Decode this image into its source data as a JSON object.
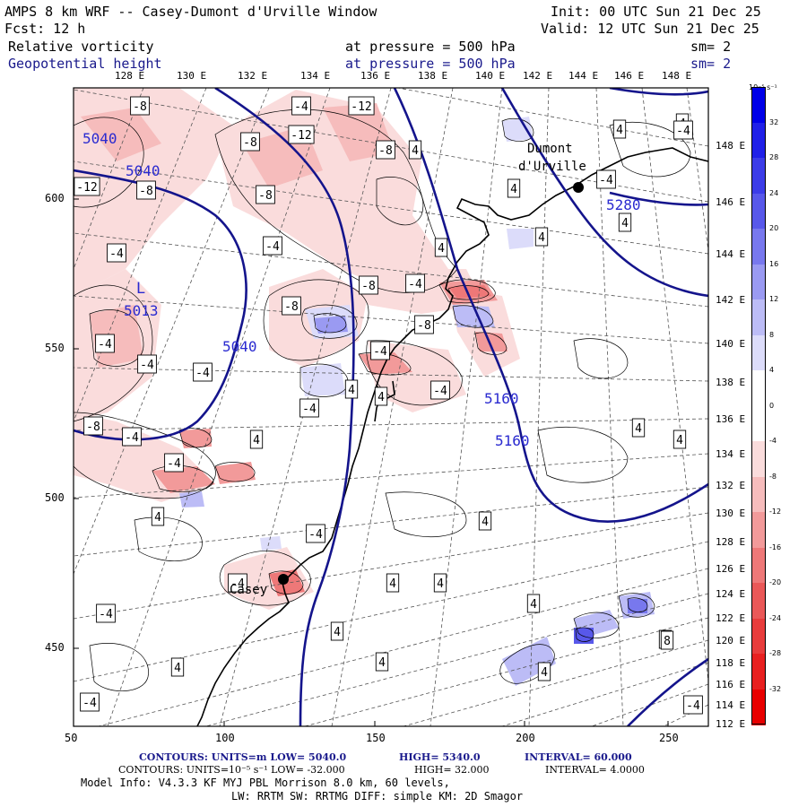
{
  "header": {
    "title": "AMPS 8 km WRF -- Casey-Dumont d'Urville Window",
    "init": "Init: 00 UTC Sun 21 Dec 25",
    "fcst": "Fcst:   12 h",
    "valid": "Valid: 12 UTC Sun 21 Dec 25",
    "field1": "Relative vorticity",
    "field1_level": "at pressure =  500 hPa",
    "field1_sm": "sm= 2",
    "field2": "Geopotential height",
    "field2_level": "at pressure =  500 hPa",
    "field2_sm": "sm= 2"
  },
  "top_lon_labels": [
    "128 E",
    "130 E",
    "132 E",
    "134 E",
    "136 E",
    "138 E",
    "140 E",
    "142 E",
    "144 E",
    "146 E",
    "148 E"
  ],
  "right_lon_labels": [
    "148 E",
    "146 E",
    "144 E",
    "142 E",
    "140 E",
    "138 E",
    "136 E",
    "134 E",
    "132 E",
    "130 E",
    "128 E",
    "126 E",
    "124 E",
    "122 E",
    "120 E",
    "118 E",
    "116 E",
    "114 E",
    "112 E"
  ],
  "x_ticks": [
    "50",
    "100",
    "150",
    "200",
    "250"
  ],
  "y_ticks": [
    "600",
    "550",
    "500",
    "450"
  ],
  "colorbar": {
    "unit": "10⁻⁵ s⁻¹",
    "labels": [
      "32",
      "28",
      "24",
      "20",
      "16",
      "12",
      "8",
      "4",
      "0",
      "-4",
      "-8",
      "-12",
      "-16",
      "-20",
      "-24",
      "-28",
      "-32"
    ],
    "colors": [
      "#0000e8",
      "#2020e8",
      "#3c3ce8",
      "#5858ea",
      "#7878ee",
      "#9a9af2",
      "#bcbcf6",
      "#dcdcfa",
      "#ffffff",
      "#ffffff",
      "#fadcdc",
      "#f6bcbc",
      "#f29a9a",
      "#ee7878",
      "#ea5858",
      "#e83c3c",
      "#e82020",
      "#e80000"
    ]
  },
  "places": {
    "dumont_line1": "Dumont",
    "dumont_line2": "d'Urville",
    "casey": "Casey",
    "low_marker": "L"
  },
  "height_labels": [
    "5040",
    "5040",
    "5013",
    "5040",
    "5160",
    "5160",
    "5280"
  ],
  "vorticity_labels": [
    "-8",
    "-4",
    "-12",
    "-8",
    "-12",
    "-8",
    "-12",
    "-8",
    "-8",
    "-4",
    "-4",
    "-8",
    "-4",
    "-8",
    "-8",
    "-4",
    "-4",
    "-4",
    "-4",
    "-8",
    "-4",
    "-4",
    "-4",
    "-4",
    "-4",
    "-4",
    "-4",
    "-4",
    "-4",
    "4",
    "4",
    "4",
    "4",
    "4",
    "4",
    "4",
    "4",
    "4",
    "4",
    "4",
    "4",
    "4",
    "4",
    "4",
    "4",
    "4",
    "4",
    "4",
    "4",
    "4",
    "4",
    "-4",
    "-4",
    "8"
  ],
  "footer": {
    "line1_a": "CONTOURS:  UNITS=m  LOW=  5040.0",
    "line1_b": "HIGH=  5340.0",
    "line1_c": "INTERVAL=   60.000",
    "line2_a": "CONTOURS:  UNITS=10⁻⁵ s⁻¹  LOW= -32.000",
    "line2_b": "HIGH=  32.000",
    "line2_c": "INTERVAL=   4.0000",
    "line3": "Model Info: V4.3.3   KF      MYJ PBL  Morrison          8.0 km,  60 levels,",
    "line4": "LW: RRTM SW: RRTMG   DIFF: simple KM: 2D Smagor"
  },
  "colors": {
    "height_contour": "#14148c",
    "label_blue": "#2a2ad0"
  }
}
